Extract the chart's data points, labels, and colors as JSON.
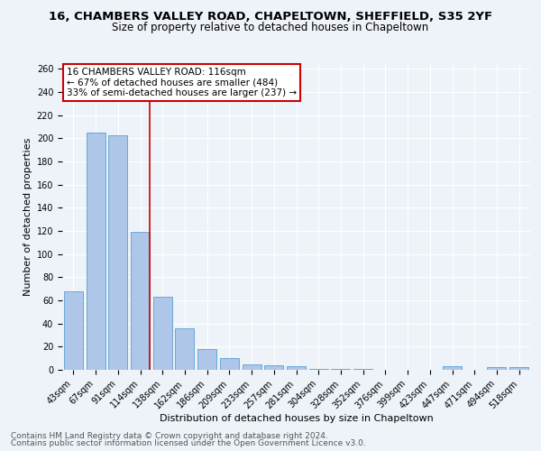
{
  "title1": "16, CHAMBERS VALLEY ROAD, CHAPELTOWN, SHEFFIELD, S35 2YF",
  "title2": "Size of property relative to detached houses in Chapeltown",
  "xlabel": "Distribution of detached houses by size in Chapeltown",
  "ylabel": "Number of detached properties",
  "categories": [
    "43sqm",
    "67sqm",
    "91sqm",
    "114sqm",
    "138sqm",
    "162sqm",
    "186sqm",
    "209sqm",
    "233sqm",
    "257sqm",
    "281sqm",
    "304sqm",
    "328sqm",
    "352sqm",
    "376sqm",
    "399sqm",
    "423sqm",
    "447sqm",
    "471sqm",
    "494sqm",
    "518sqm"
  ],
  "values": [
    68,
    205,
    203,
    119,
    63,
    36,
    18,
    10,
    5,
    4,
    3,
    1,
    1,
    1,
    0,
    0,
    0,
    3,
    0,
    2,
    2
  ],
  "bar_color": "#aec6e8",
  "bar_edgecolor": "#5a9fd4",
  "subject_label": "16 CHAMBERS VALLEY ROAD: 116sqm",
  "annotation_line1": "← 67% of detached houses are smaller (484)",
  "annotation_line2": "33% of semi-detached houses are larger (237) →",
  "vline_color": "#cc0000",
  "annotation_box_edgecolor": "#cc0000",
  "ylim": [
    0,
    265
  ],
  "yticks": [
    0,
    20,
    40,
    60,
    80,
    100,
    120,
    140,
    160,
    180,
    200,
    220,
    240,
    260
  ],
  "footnote1": "Contains HM Land Registry data © Crown copyright and database right 2024.",
  "footnote2": "Contains public sector information licensed under the Open Government Licence v3.0.",
  "background_color": "#eef2f9",
  "grid_color": "#ffffff",
  "title1_fontsize": 9.5,
  "title2_fontsize": 8.5,
  "xlabel_fontsize": 8,
  "ylabel_fontsize": 8,
  "tick_fontsize": 7,
  "annotation_fontsize": 7.5,
  "footnote_fontsize": 6.5
}
